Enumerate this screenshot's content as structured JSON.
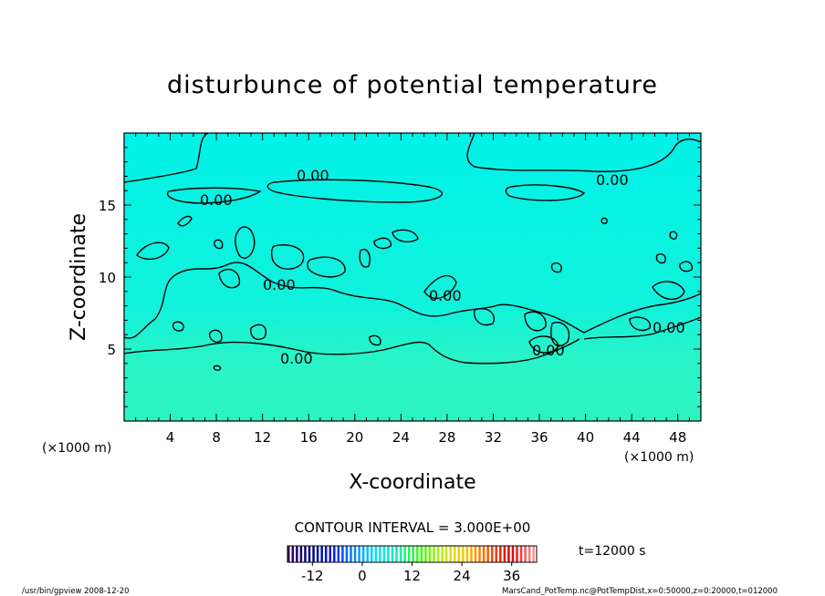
{
  "chart_data": {
    "type": "heatmap",
    "title": "disturbunce of potential temperature",
    "xlabel": "X-coordinate",
    "ylabel": "Z-coordinate",
    "x_unit": "(×1000 m)",
    "y_unit": "(×1000 m)",
    "xlim": [
      0,
      50
    ],
    "ylim": [
      0,
      20
    ],
    "xticks": [
      4,
      8,
      12,
      16,
      20,
      24,
      28,
      32,
      36,
      40,
      44,
      48
    ],
    "yticks": [
      5,
      10,
      15
    ],
    "contour_label": "0.00",
    "contour_interval_text": "CONTOUR INTERVAL = 3.000E+00",
    "time_text": "t=12000 s",
    "colorbar": {
      "min": -18,
      "max": 42,
      "ticks": [
        -12,
        0,
        12,
        24,
        36
      ],
      "colors": [
        "#3a0058",
        "#000080",
        "#0020e0",
        "#0090ff",
        "#00e8ff",
        "#00f0a0",
        "#40ff00",
        "#c8f000",
        "#ffc000",
        "#ff5000",
        "#e00000",
        "#ff9090"
      ]
    },
    "field_colors": {
      "upper": "#00f2e8",
      "lower": "#24f4c8"
    }
  },
  "footer": {
    "left": "/usr/bin/gpview   2008-12-20",
    "right": "MarsCand_PotTemp.nc@PotTempDist,x=0:50000,z=0:20000,t=012000"
  }
}
